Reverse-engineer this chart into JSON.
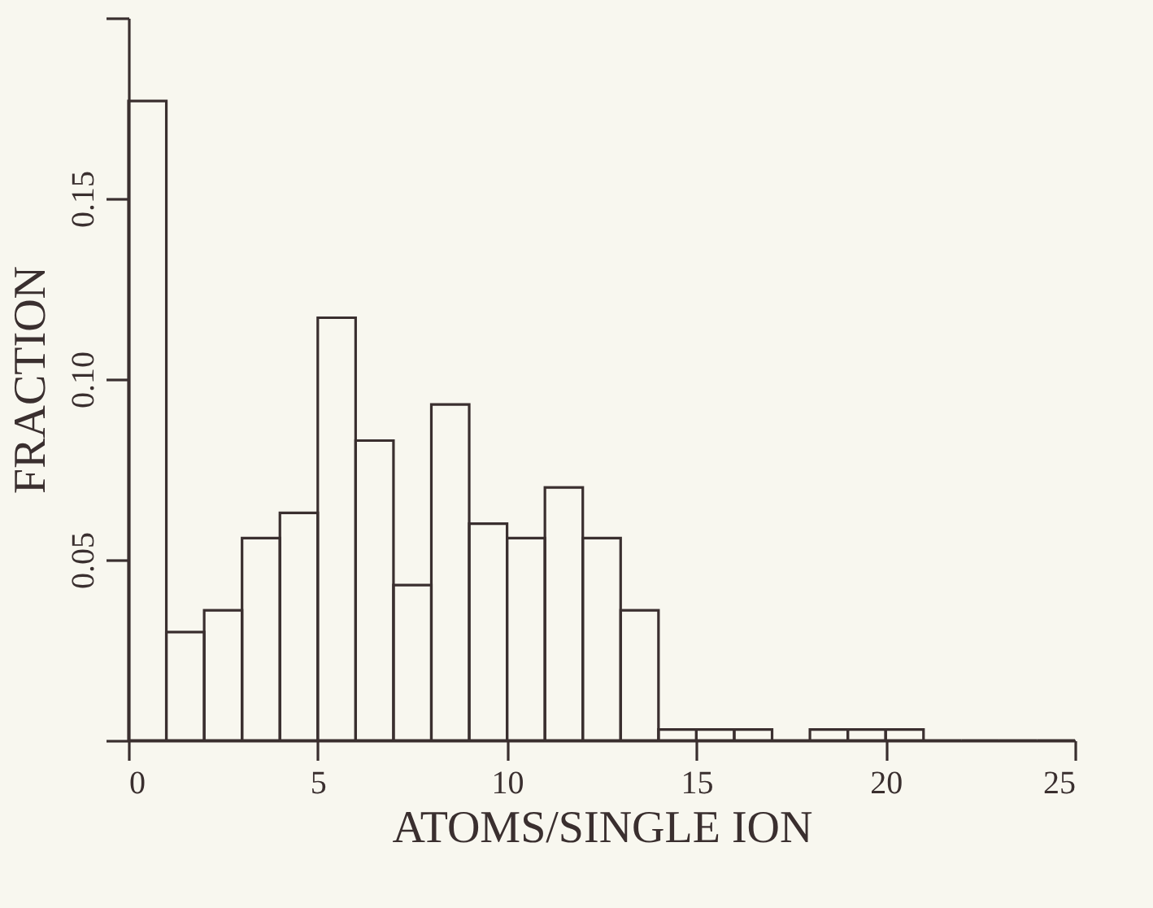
{
  "chart_data": {
    "type": "histogram",
    "xlabel": "ATOMS/SINGLE ION",
    "ylabel": "FRACTION",
    "bins": [
      0,
      1,
      2,
      3,
      4,
      5,
      6,
      7,
      8,
      9,
      10,
      11,
      12,
      13,
      14,
      15,
      16,
      17,
      18,
      19,
      20,
      21,
      22,
      23,
      24,
      25
    ],
    "values": [
      0.177,
      0.03,
      0.036,
      0.056,
      0.063,
      0.117,
      0.083,
      0.043,
      0.093,
      0.06,
      0.056,
      0.07,
      0.056,
      0.036,
      0.003,
      0.003,
      0.003,
      0,
      0.003,
      0.003,
      0.003,
      0,
      0,
      0,
      0
    ],
    "color": "#3a2f2f",
    "xlim": [
      0,
      25
    ],
    "xticks": [
      0,
      5,
      10,
      15,
      20,
      25
    ],
    "ylim": [
      0,
      0.2
    ],
    "yticks": [
      {
        "value": 0,
        "label": null
      },
      0.05,
      {
        "value": 0.1,
        "label": "0.10"
      },
      0.15,
      {
        "value": 0.2,
        "label": null
      }
    ],
    "grid": false
  }
}
